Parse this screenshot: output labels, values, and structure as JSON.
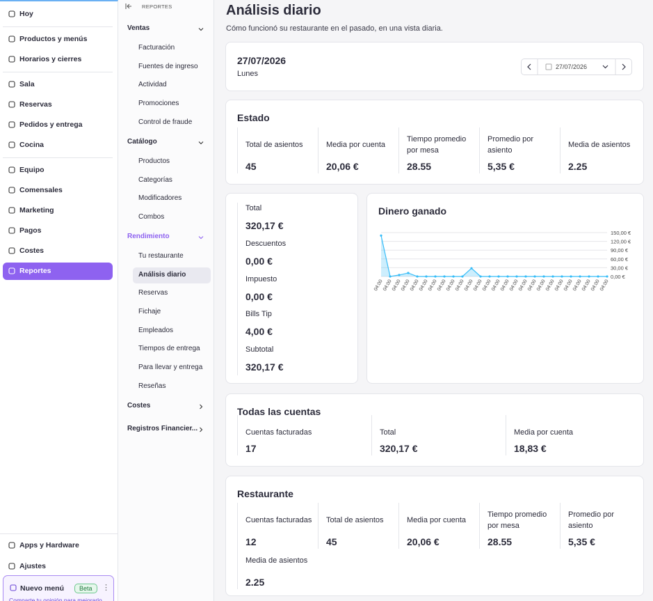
{
  "sidebar": {
    "sections": [
      [
        "Hoy"
      ],
      [
        "Productos y menús",
        "Horarios y cierres"
      ],
      [
        "Sala",
        "Reservas",
        "Pedidos y entrega",
        "Cocina"
      ],
      [
        "Equipo",
        "Comensales",
        "Marketing",
        "Pagos",
        "Costes",
        "Reportes"
      ]
    ],
    "active": "Reportes",
    "bottom": [
      "Apps y Hardware",
      "Ajustes"
    ],
    "promo": {
      "title": "Nuevo menú",
      "badge": "Beta",
      "text": "Comparte tu opinión para mejorarlo"
    }
  },
  "subnav": {
    "header": "REPORTES",
    "active_group": "Rendimiento",
    "active_item": "Análisis diario",
    "groups": [
      {
        "label": "Ventas",
        "items": [
          "Facturación",
          "Fuentes de ingreso",
          "Actividad",
          "Promociones",
          "Control de fraude"
        ]
      },
      {
        "label": "Catálogo",
        "items": [
          "Productos",
          "Categorías",
          "Modificadores",
          "Combos"
        ]
      },
      {
        "label": "Rendimiento",
        "items": [
          "Tu restaurante",
          "Análisis diario",
          "Reservas",
          "Fichaje",
          "Empleados",
          "Tiempos de entrega",
          "Para llevar y entrega",
          "Reseñas"
        ]
      },
      {
        "label": "Costes",
        "items": []
      },
      {
        "label": "Registros Financier...",
        "items": []
      }
    ]
  },
  "page": {
    "title": "Análisis diario",
    "subtitle": "Cómo funcionó su restaurante en el pasado, en una vista diaria."
  },
  "date_card": {
    "date": "27/07/2026",
    "weekday": "Lunes",
    "picker": "27/07/2026"
  },
  "estado": {
    "title": "Estado",
    "stats": [
      {
        "label": "Total de asientos",
        "value": "45"
      },
      {
        "label": "Media por cuenta",
        "value": "20,06 €"
      },
      {
        "label": "Tiempo promedio por mesa",
        "value": "28.55"
      },
      {
        "label": "Promedio por asiento",
        "value": "5,35 €"
      },
      {
        "label": "Media de asientos",
        "value": "2.25"
      }
    ]
  },
  "totals": [
    {
      "label": "Total",
      "value": "320,17 €"
    },
    {
      "label": "Descuentos",
      "value": "0,00 €"
    },
    {
      "label": "Impuesto",
      "value": "0,00 €"
    },
    {
      "label": "Bills Tip",
      "value": "4,00 €"
    },
    {
      "label": "Subtotal",
      "value": "320,17 €"
    }
  ],
  "chart_data": {
    "type": "area",
    "title": "Dinero ganado",
    "color": "#38bdf8",
    "categories": [
      "04:00",
      "04:00",
      "04:00",
      "04:00",
      "04:00",
      "04:00",
      "04:00",
      "04:00",
      "04:00",
      "04:00",
      "04:00",
      "04:00",
      "04:00",
      "04:00",
      "04:00",
      "04:00",
      "04:00",
      "04:00",
      "04:00",
      "04:00",
      "04:00",
      "04:00",
      "04:00",
      "04:00",
      "04:00",
      "04:00"
    ],
    "values": [
      140,
      0,
      5,
      12,
      0,
      0,
      0,
      0,
      0,
      0,
      28,
      0,
      0,
      0,
      0,
      0,
      0,
      0,
      0,
      0,
      0,
      0,
      0,
      0,
      0,
      0
    ],
    "ylim": [
      0,
      150
    ],
    "yticks": [
      {
        "value": 0,
        "label": "0,00 €"
      },
      {
        "value": 30,
        "label": "30,00 €"
      },
      {
        "value": 60,
        "label": "60,00 €"
      },
      {
        "value": 90,
        "label": "90,00 €"
      },
      {
        "value": 120,
        "label": "120,00 €"
      },
      {
        "value": 150,
        "label": "150,00 €"
      }
    ],
    "grid": true
  },
  "cuentas": {
    "title": "Todas las cuentas",
    "stats": [
      {
        "label": "Cuentas facturadas",
        "value": "17"
      },
      {
        "label": "Total",
        "value": "320,17 €"
      },
      {
        "label": "Media por cuenta",
        "value": "18,83 €"
      }
    ]
  },
  "restaurante": {
    "title": "Restaurante",
    "stats": [
      {
        "label": "Cuentas facturadas",
        "value": "12"
      },
      {
        "label": "Total de asientos",
        "value": "45"
      },
      {
        "label": "Media por cuenta",
        "value": "20,06 €"
      },
      {
        "label": "Tiempo promedio por mesa",
        "value": "28.55"
      },
      {
        "label": "Promedio por asiento",
        "value": "5,35 €"
      },
      {
        "label": "Media de asientos",
        "value": "2.25"
      }
    ]
  }
}
